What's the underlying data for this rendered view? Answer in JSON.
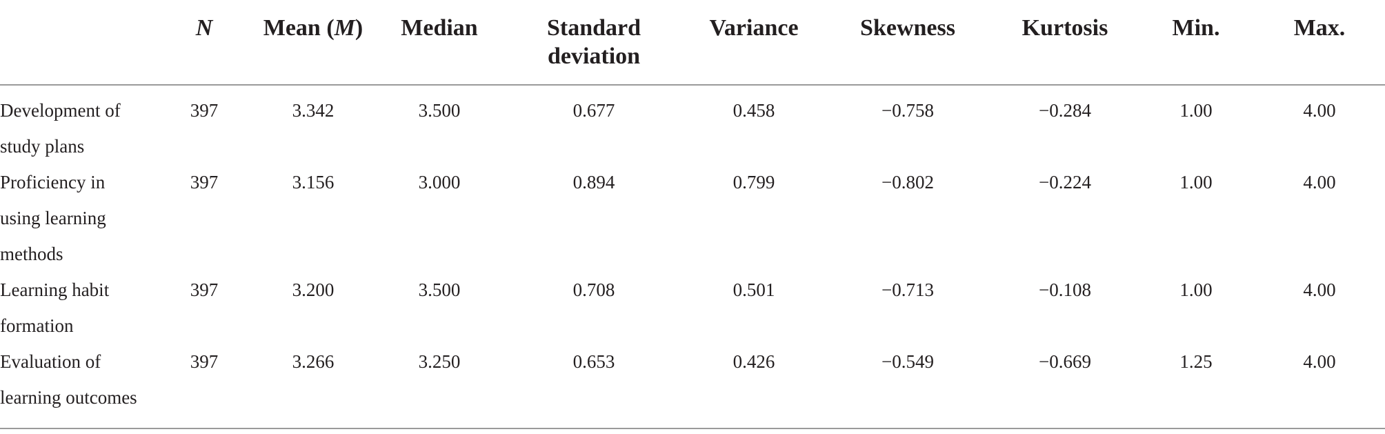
{
  "table": {
    "headers": [
      {
        "key": "label",
        "text": ""
      },
      {
        "key": "n",
        "text": "N"
      },
      {
        "key": "mean",
        "text": "Mean (M)"
      },
      {
        "key": "median",
        "text": "Median"
      },
      {
        "key": "sd",
        "text": "Standard deviation"
      },
      {
        "key": "variance",
        "text": "Variance"
      },
      {
        "key": "skewness",
        "text": "Skewness"
      },
      {
        "key": "kurtosis",
        "text": "Kurtosis"
      },
      {
        "key": "min",
        "text": "Min."
      },
      {
        "key": "max",
        "text": "Max."
      }
    ],
    "header_n": "N",
    "header_mean_prefix": "Mean (",
    "header_mean_italic": "M",
    "header_mean_suffix": ")",
    "header_median": "Median",
    "header_sd_line1": "Standard",
    "header_sd_line2": "deviation",
    "header_variance": "Variance",
    "header_skewness": "Skewness",
    "header_kurtosis": "Kurtosis",
    "header_min": "Min.",
    "header_max": "Max.",
    "rows": [
      {
        "label_lines": [
          "Development of",
          "study plans"
        ],
        "n": "397",
        "mean": "3.342",
        "median": "3.500",
        "sd": "0.677",
        "variance": "0.458",
        "skewness": "−0.758",
        "kurtosis": "−0.284",
        "min": "1.00",
        "max": "4.00"
      },
      {
        "label_lines": [
          "Proficiency in",
          "using learning",
          "methods"
        ],
        "n": "397",
        "mean": "3.156",
        "median": "3.000",
        "sd": "0.894",
        "variance": "0.799",
        "skewness": "−0.802",
        "kurtosis": "−0.224",
        "min": "1.00",
        "max": "4.00"
      },
      {
        "label_lines": [
          "Learning habit",
          "formation"
        ],
        "n": "397",
        "mean": "3.200",
        "median": "3.500",
        "sd": "0.708",
        "variance": "0.501",
        "skewness": "−0.713",
        "kurtosis": "−0.108",
        "min": "1.00",
        "max": "4.00"
      },
      {
        "label_lines": [
          "Evaluation of",
          "learning outcomes"
        ],
        "n": "397",
        "mean": "3.266",
        "median": "3.250",
        "sd": "0.653",
        "variance": "0.426",
        "skewness": "−0.549",
        "kurtosis": "−0.669",
        "min": "1.25",
        "max": "4.00"
      }
    ]
  }
}
